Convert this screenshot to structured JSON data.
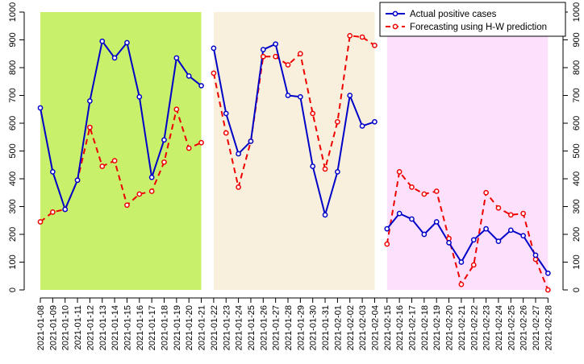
{
  "chart_data": {
    "type": "line",
    "title": "",
    "xlabel": "",
    "ylabel": "",
    "ylim": [
      0,
      1000
    ],
    "y_ticks": [
      0,
      100,
      200,
      300,
      400,
      500,
      600,
      700,
      800,
      900,
      1000
    ],
    "y_tick_labels": [
      "0",
      "100",
      "200",
      "300",
      "400",
      "500",
      "600",
      "700",
      "800",
      "900",
      "1000"
    ],
    "categories": [
      "2021-01-08",
      "2021-01-09",
      "2021-01-10",
      "2021-01-11",
      "2021-01-12",
      "2021-01-13",
      "2021-01-14",
      "2021-01-15",
      "2021-01-16",
      "2021-01-17",
      "2021-01-18",
      "2021-01-19",
      "2021-01-20",
      "2021-01-21",
      "2021-01-22",
      "2021-01-23",
      "2021-01-24",
      "2021-01-25",
      "2021-01-26",
      "2021-01-27",
      "2021-01-28",
      "2021-01-29",
      "2021-01-30",
      "2021-01-31",
      "2021-02-01",
      "2021-02-02",
      "2021-02-03",
      "2021-02-04",
      "2021-02-15",
      "2021-02-16",
      "2021-02-17",
      "2021-02-18",
      "2021-02-19",
      "2021-02-20",
      "2021-02-21",
      "2021-02-22",
      "2021-02-23",
      "2021-02-24",
      "2021-02-25",
      "2021-02-26",
      "2021-02-27",
      "2021-02-28"
    ],
    "panels": [
      {
        "name": "panel-1",
        "start": 0,
        "end": 13,
        "color": "#c8f06a"
      },
      {
        "name": "panel-2",
        "start": 14,
        "end": 27,
        "color": "#f8f0dc"
      },
      {
        "name": "panel-3",
        "start": 28,
        "end": 41,
        "color": "#fce0fc"
      }
    ],
    "series": [
      {
        "name": "Actual positive cases",
        "color": "#0000c8",
        "dash": "solid",
        "values": [
          655,
          425,
          290,
          395,
          680,
          895,
          835,
          890,
          695,
          405,
          540,
          835,
          770,
          735,
          870,
          635,
          490,
          535,
          865,
          885,
          700,
          695,
          445,
          270,
          425,
          700,
          590,
          605,
          220,
          275,
          255,
          200,
          245,
          170,
          100,
          180,
          220,
          175,
          215,
          195,
          125,
          60
        ]
      },
      {
        "name": "Forecasting using H-W prediction",
        "color": "#ee0000",
        "dash": "dashed",
        "values": [
          245,
          280,
          290,
          395,
          585,
          445,
          465,
          305,
          345,
          355,
          460,
          650,
          510,
          530,
          780,
          565,
          370,
          535,
          840,
          840,
          810,
          850,
          635,
          435,
          605,
          915,
          910,
          880,
          165,
          425,
          370,
          345,
          355,
          185,
          20,
          90,
          350,
          295,
          270,
          275,
          110,
          0
        ]
      }
    ],
    "legend": {
      "position": "top-right",
      "entries": [
        "Actual positive cases",
        "Forecasting using H-W prediction"
      ]
    }
  }
}
